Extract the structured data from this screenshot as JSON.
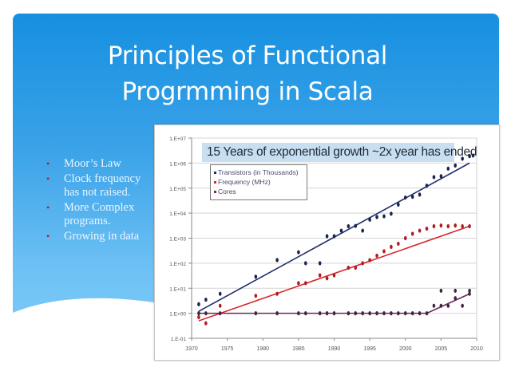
{
  "slide": {
    "title_line1": "Principles of Functional",
    "title_line2": "Progrmming in Scala",
    "bullets": [
      {
        "text": "Moor’s Law"
      },
      {
        "text": "Clock frequency has not raised."
      },
      {
        "text": "More Complex programs."
      },
      {
        "text": "Growing in data"
      }
    ],
    "colors": {
      "gradient_top": "#1690e0",
      "gradient_bottom": "#80cdf8",
      "bullet": "#c0172b",
      "text": "#ffffff"
    }
  },
  "chart": {
    "title": "15 Years of exponential growth ~2x year has ended",
    "legend": [
      {
        "label": "Transistors (in Thousands)",
        "color": "#1f2d6b"
      },
      {
        "label": "Frequency (MHz)",
        "color": "#d7262a"
      },
      {
        "label": "Cores",
        "color": "#6a2a5a"
      }
    ]
  },
  "chart_data": {
    "type": "scatter",
    "title": "15 Years of exponential growth ~2x year has ended",
    "xlabel": "",
    "ylabel": "",
    "xlim": [
      1970,
      2010
    ],
    "ylim": [
      0.1,
      10000000
    ],
    "yscale": "log",
    "x_ticks": [
      "1970",
      "1975",
      "1980",
      "1985",
      "1990",
      "1995",
      "2000",
      "2005",
      "2010"
    ],
    "y_ticks": [
      "1.E+07",
      "1.E+06",
      "1.E+05",
      "1.E+04",
      "1.E+03",
      "1.E+02",
      "1.E+01",
      "1.E+00",
      "1.E-01"
    ],
    "grid": true,
    "legend_position": "upper left",
    "series": [
      {
        "name": "Transistors (in Thousands)",
        "color": "#1f2d6b",
        "trend": [
          [
            1971,
            1.2
          ],
          [
            2009,
            1000000
          ]
        ],
        "points": [
          [
            1971,
            2.3
          ],
          [
            1972,
            3.5
          ],
          [
            1974,
            6
          ],
          [
            1979,
            29
          ],
          [
            1982,
            134
          ],
          [
            1985,
            275
          ],
          [
            1986,
            100
          ],
          [
            1988,
            100
          ],
          [
            1989,
            1200
          ],
          [
            1990,
            1200
          ],
          [
            1991,
            2000
          ],
          [
            1992,
            3000
          ],
          [
            1993,
            3100
          ],
          [
            1994,
            2000
          ],
          [
            1995,
            5500
          ],
          [
            1996,
            7000
          ],
          [
            1997,
            7500
          ],
          [
            1998,
            9500
          ],
          [
            1999,
            22000
          ],
          [
            2000,
            42000
          ],
          [
            2001,
            45000
          ],
          [
            2002,
            55000
          ],
          [
            2003,
            125000
          ],
          [
            2004,
            275000
          ],
          [
            2005,
            300000
          ],
          [
            2006,
            600000
          ],
          [
            2007,
            800000
          ],
          [
            2008,
            1500000
          ],
          [
            2009,
            1900000
          ],
          [
            2009.5,
            2000000
          ]
        ]
      },
      {
        "name": "Frequency (MHz)",
        "color": "#d7262a",
        "trend": [
          [
            1971,
            0.5
          ],
          [
            2009,
            3000
          ]
        ],
        "points": [
          [
            1971,
            0.7
          ],
          [
            1972,
            0.4
          ],
          [
            1974,
            2
          ],
          [
            1979,
            5
          ],
          [
            1982,
            6
          ],
          [
            1985,
            16
          ],
          [
            1986,
            16
          ],
          [
            1988,
            33
          ],
          [
            1989,
            25
          ],
          [
            1990,
            33
          ],
          [
            1992,
            66
          ],
          [
            1993,
            66
          ],
          [
            1994,
            100
          ],
          [
            1995,
            133
          ],
          [
            1996,
            200
          ],
          [
            1997,
            300
          ],
          [
            1998,
            450
          ],
          [
            1999,
            600
          ],
          [
            2000,
            1000
          ],
          [
            2001,
            1500
          ],
          [
            2002,
            2000
          ],
          [
            2003,
            2400
          ],
          [
            2004,
            3000
          ],
          [
            2005,
            3200
          ],
          [
            2006,
            3000
          ],
          [
            2007,
            3200
          ],
          [
            2008,
            3000
          ],
          [
            2009,
            3000
          ]
        ]
      },
      {
        "name": "Cores",
        "color": "#6a2a5a",
        "trend": [
          [
            1971,
            1
          ],
          [
            2003,
            1
          ],
          [
            2009,
            6
          ]
        ],
        "points": [
          [
            1971,
            1
          ],
          [
            1972,
            1
          ],
          [
            1974,
            1
          ],
          [
            1979,
            1
          ],
          [
            1982,
            1
          ],
          [
            1985,
            1
          ],
          [
            1986,
            1
          ],
          [
            1988,
            1
          ],
          [
            1989,
            1
          ],
          [
            1990,
            1
          ],
          [
            1992,
            1
          ],
          [
            1993,
            1
          ],
          [
            1994,
            1
          ],
          [
            1995,
            1
          ],
          [
            1996,
            1
          ],
          [
            1997,
            1
          ],
          [
            1998,
            1
          ],
          [
            1999,
            1
          ],
          [
            2000,
            1
          ],
          [
            2001,
            1
          ],
          [
            2002,
            1
          ],
          [
            2003,
            1
          ],
          [
            2004,
            2
          ],
          [
            2005,
            2
          ],
          [
            2005,
            8
          ],
          [
            2006,
            2
          ],
          [
            2007,
            4
          ],
          [
            2007,
            8
          ],
          [
            2008,
            2
          ],
          [
            2009,
            6
          ],
          [
            2009,
            8
          ]
        ]
      }
    ]
  }
}
